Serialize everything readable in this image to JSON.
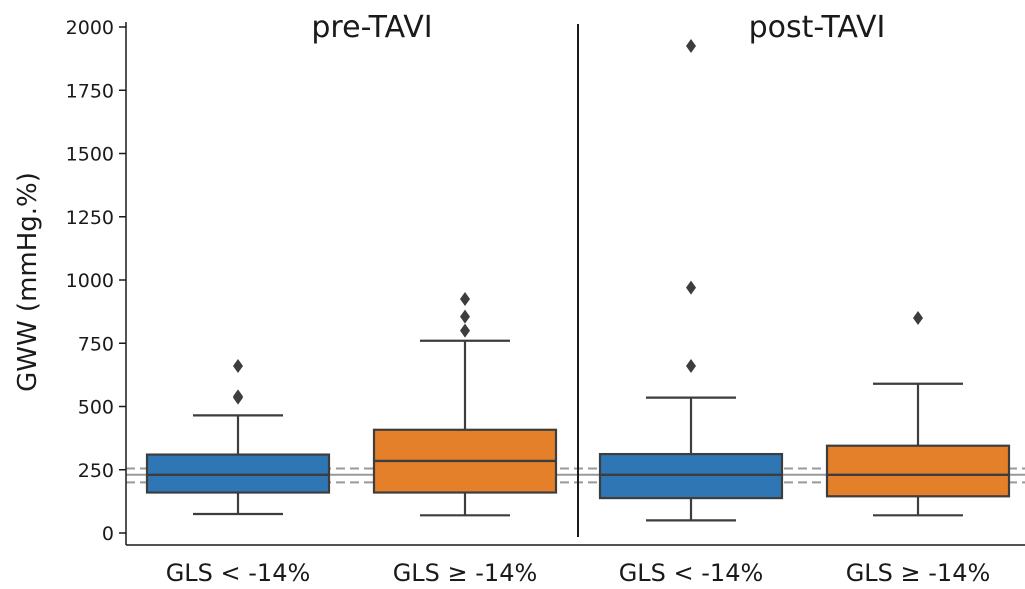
{
  "chart_data": {
    "type": "box",
    "ylabel": "GWW (mmHg.%)",
    "ylim": [
      -40,
      2030
    ],
    "yticks": [
      0,
      250,
      500,
      750,
      1000,
      1250,
      1500,
      1750,
      2000
    ],
    "reference_lines": [
      {
        "y": 200,
        "style": "dashed",
        "color": "#999999"
      },
      {
        "y": 230,
        "style": "solid",
        "color": "#999999"
      },
      {
        "y": 255,
        "style": "dashed",
        "color": "#999999"
      }
    ],
    "colors": {
      "blue": "#2f77b4",
      "orange": "#e5802a",
      "edge": "#3d3d3d"
    },
    "panels": [
      {
        "title": "pre-TAVI",
        "boxes": [
          {
            "category": "GLS < -14%",
            "color": "#2f77b4",
            "min": 75,
            "q1": 160,
            "median": 230,
            "q3": 310,
            "max": 465,
            "outliers": [
              535,
              540,
              660
            ]
          },
          {
            "category": "GLS ≥ -14%",
            "color": "#e5802a",
            "min": 70,
            "q1": 160,
            "median": 285,
            "q3": 408,
            "max": 760,
            "outliers": [
              800,
              855,
              925
            ]
          }
        ]
      },
      {
        "title": "post-TAVI",
        "boxes": [
          {
            "category": "GLS < -14%",
            "color": "#2f77b4",
            "min": 50,
            "q1": 138,
            "median": 230,
            "q3": 312,
            "max": 535,
            "outliers": [
              660,
              970,
              1925
            ]
          },
          {
            "category": "GLS ≥ -14%",
            "color": "#e5802a",
            "min": 70,
            "q1": 145,
            "median": 230,
            "q3": 345,
            "max": 590,
            "outliers": [
              850
            ]
          }
        ]
      }
    ]
  }
}
